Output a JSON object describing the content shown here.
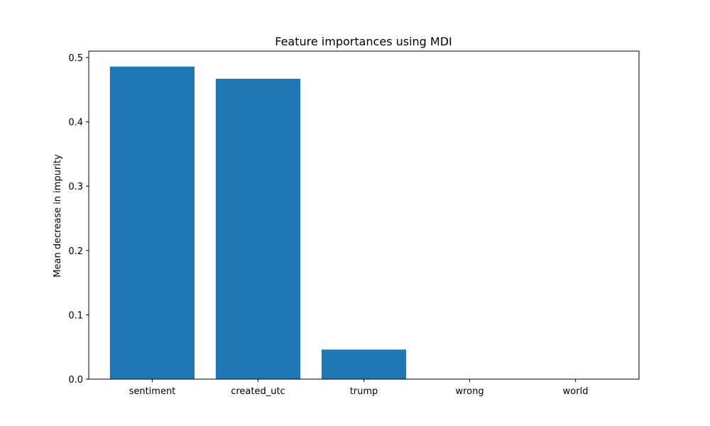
{
  "chart_data": {
    "type": "bar",
    "title": "Feature importances using MDI",
    "xlabel": "",
    "ylabel": "Mean decrease in impurity",
    "categories": [
      "sentiment",
      "created_utc",
      "trump",
      "wrong",
      "world"
    ],
    "values": [
      0.486,
      0.467,
      0.046,
      0.0,
      0.0
    ],
    "ylim": [
      0,
      0.51
    ],
    "yticks": [
      0.0,
      0.1,
      0.2,
      0.3,
      0.4,
      0.5
    ],
    "ytick_labels": [
      "0.0",
      "0.1",
      "0.2",
      "0.3",
      "0.4",
      "0.5"
    ],
    "bar_color": "#1f77b4",
    "grid": false,
    "legend": "none"
  }
}
